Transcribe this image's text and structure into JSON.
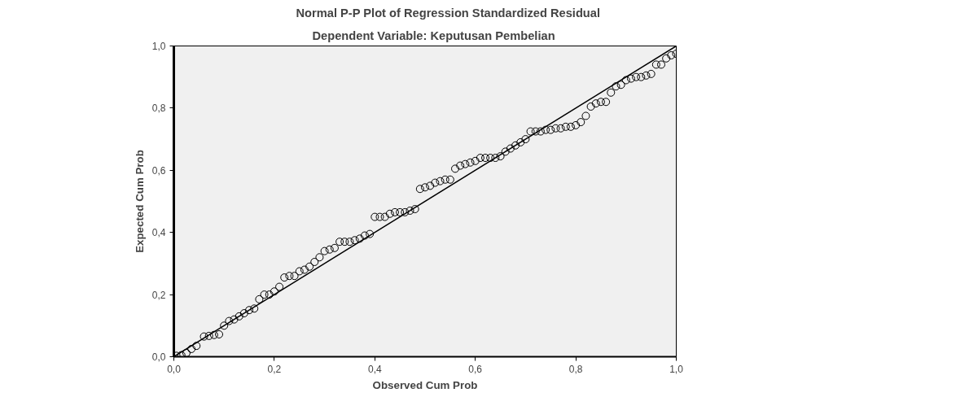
{
  "chart_data": {
    "type": "scatter",
    "title": "Normal P-P Plot of Regression Standardized Residual",
    "subtitle": "Dependent Variable: Keputusan Pembelian",
    "xlabel": "Observed Cum Prob",
    "ylabel": "Expected Cum Prob",
    "xlim": [
      0,
      1
    ],
    "ylim": [
      0,
      1
    ],
    "xticks": [
      {
        "value": 0,
        "label": "0,0"
      },
      {
        "value": 0.2,
        "label": "0,2"
      },
      {
        "value": 0.4,
        "label": "0,4"
      },
      {
        "value": 0.6,
        "label": "0,6"
      },
      {
        "value": 0.8,
        "label": "0,8"
      },
      {
        "value": 1,
        "label": "1,0"
      }
    ],
    "yticks": [
      {
        "value": 0,
        "label": "0,0"
      },
      {
        "value": 0.2,
        "label": "0,2"
      },
      {
        "value": 0.4,
        "label": "0,4"
      },
      {
        "value": 0.6,
        "label": "0,6"
      },
      {
        "value": 0.8,
        "label": "0,8"
      },
      {
        "value": 1,
        "label": "1,0"
      }
    ],
    "grid": false,
    "marker": "circle",
    "series": [
      {
        "color": "#000000",
        "x": [
          0.005,
          0.015,
          0.025,
          0.035,
          0.045,
          0.06,
          0.07,
          0.08,
          0.09,
          0.1,
          0.11,
          0.12,
          0.13,
          0.14,
          0.15,
          0.16,
          0.17,
          0.18,
          0.19,
          0.2,
          0.21,
          0.22,
          0.23,
          0.24,
          0.25,
          0.26,
          0.27,
          0.28,
          0.29,
          0.3,
          0.31,
          0.32,
          0.33,
          0.34,
          0.35,
          0.36,
          0.37,
          0.38,
          0.39,
          0.4,
          0.41,
          0.42,
          0.43,
          0.44,
          0.45,
          0.46,
          0.47,
          0.48,
          0.49,
          0.5,
          0.51,
          0.52,
          0.53,
          0.54,
          0.55,
          0.56,
          0.57,
          0.58,
          0.59,
          0.6,
          0.61,
          0.62,
          0.63,
          0.64,
          0.65,
          0.66,
          0.67,
          0.68,
          0.69,
          0.7,
          0.71,
          0.72,
          0.73,
          0.74,
          0.75,
          0.76,
          0.77,
          0.78,
          0.79,
          0.8,
          0.81,
          0.82,
          0.83,
          0.84,
          0.85,
          0.86,
          0.87,
          0.88,
          0.89,
          0.9,
          0.91,
          0.92,
          0.93,
          0.94,
          0.95,
          0.96,
          0.97,
          0.98,
          0.99,
          1.0
        ],
        "values": [
          0.003,
          0.005,
          0.012,
          0.025,
          0.035,
          0.065,
          0.067,
          0.07,
          0.072,
          0.1,
          0.115,
          0.12,
          0.13,
          0.14,
          0.15,
          0.155,
          0.185,
          0.2,
          0.2,
          0.21,
          0.225,
          0.255,
          0.26,
          0.26,
          0.275,
          0.28,
          0.29,
          0.305,
          0.32,
          0.34,
          0.345,
          0.35,
          0.37,
          0.37,
          0.37,
          0.375,
          0.38,
          0.39,
          0.395,
          0.45,
          0.45,
          0.45,
          0.46,
          0.465,
          0.465,
          0.465,
          0.47,
          0.475,
          0.54,
          0.545,
          0.55,
          0.56,
          0.565,
          0.57,
          0.57,
          0.605,
          0.615,
          0.62,
          0.625,
          0.63,
          0.64,
          0.64,
          0.64,
          0.64,
          0.645,
          0.66,
          0.67,
          0.68,
          0.69,
          0.7,
          0.725,
          0.725,
          0.725,
          0.73,
          0.73,
          0.735,
          0.735,
          0.74,
          0.74,
          0.745,
          0.755,
          0.775,
          0.805,
          0.815,
          0.82,
          0.82,
          0.85,
          0.87,
          0.875,
          0.89,
          0.895,
          0.9,
          0.9,
          0.905,
          0.91,
          0.94,
          0.94,
          0.96,
          0.97,
          0.975
        ]
      },
      {
        "type": "line",
        "color": "#000000",
        "x": [
          0,
          1
        ],
        "values": [
          0,
          1
        ],
        "line_style": "solid",
        "marker": "none"
      }
    ]
  }
}
